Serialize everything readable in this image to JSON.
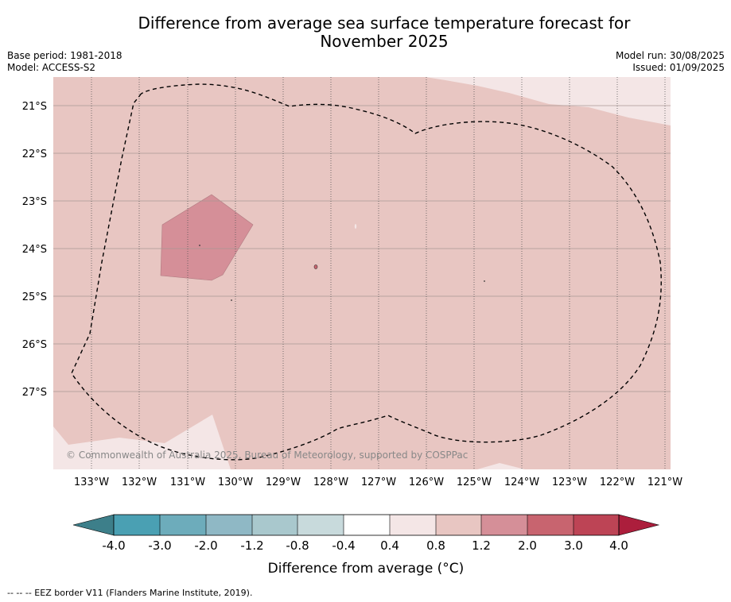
{
  "title_line1": "Difference from average sea surface temperature forecast for",
  "title_line2": "November 2025",
  "meta_left": [
    "Base period: 1981-2018",
    "Model: ACCESS-S2"
  ],
  "meta_right": [
    "Model run: 30/08/2025",
    "Issued: 01/09/2025"
  ],
  "map": {
    "lat_labels": [
      "21°S",
      "22°S",
      "23°S",
      "24°S",
      "25°S",
      "26°S",
      "27°S"
    ],
    "lon_labels": [
      "133°W",
      "132°W",
      "131°W",
      "130°W",
      "129°W",
      "128°W",
      "127°W",
      "126°W",
      "125°W",
      "124°W",
      "123°W",
      "122°W",
      "121°W"
    ],
    "copyright": "© Commonwealth of Australia 2025, Bureau of Meteorology, supported by COSPPac",
    "base_anomaly_band": "0.8 to 1.2",
    "colors": {
      "band_0_4_0_8": "#f4e6e6",
      "band_0_8_1_2": "#e8c6c2",
      "band_1_2_2_0": "#d58f98"
    }
  },
  "colorbar": {
    "ticks": [
      "-4.0",
      "-3.0",
      "-2.0",
      "-1.2",
      "-0.8",
      "-0.4",
      "0.4",
      "0.8",
      "1.2",
      "2.0",
      "3.0",
      "4.0"
    ],
    "colors": [
      "#3d7f8a",
      "#4aa0b3",
      "#6dacbb",
      "#8fb8c5",
      "#a9c8cd",
      "#c8dadc",
      "#ffffff",
      "#f4e6e6",
      "#e8c6c2",
      "#d58f98",
      "#c8646f",
      "#bd4455",
      "#ac1e3c"
    ],
    "label": "Difference from average (°C)"
  },
  "footnote": "-- -- -- EEZ border V11 (Flanders Marine Institute, 2019)."
}
